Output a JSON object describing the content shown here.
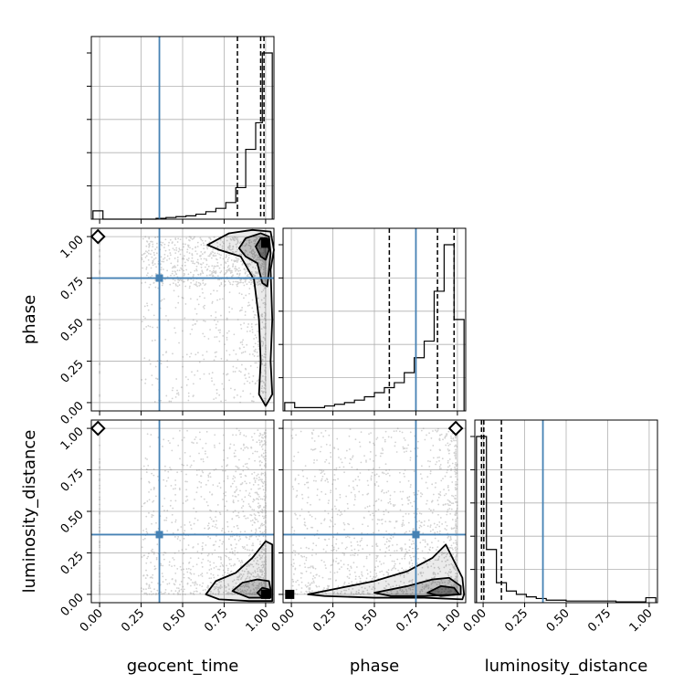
{
  "figure": {
    "type": "corner-plot",
    "parameters": [
      "geocent_time",
      "phase",
      "luminosity_distance"
    ],
    "tick_labels": [
      "0.00",
      "0.25",
      "0.50",
      "0.75",
      "1.00"
    ]
  },
  "colors": {
    "truth": "#4682b4",
    "grid": "#b0b0b0",
    "histogram": "#000000",
    "scatter": "#808080"
  },
  "chart_data": [
    {
      "type": "histogram",
      "panel": "geocent_time-1d",
      "xlabel": "",
      "xlim": [
        -0.05,
        1.05
      ],
      "bins": [
        {
          "x0": -0.04,
          "x1": 0.02,
          "v": 0.05
        },
        {
          "x0": 0.02,
          "x1": 0.34,
          "v": 0.0
        },
        {
          "x0": 0.34,
          "x1": 0.4,
          "v": 0.005
        },
        {
          "x0": 0.4,
          "x1": 0.46,
          "v": 0.01
        },
        {
          "x0": 0.46,
          "x1": 0.52,
          "v": 0.015
        },
        {
          "x0": 0.52,
          "x1": 0.58,
          "v": 0.02
        },
        {
          "x0": 0.58,
          "x1": 0.64,
          "v": 0.03
        },
        {
          "x0": 0.64,
          "x1": 0.7,
          "v": 0.045
        },
        {
          "x0": 0.7,
          "x1": 0.76,
          "v": 0.065
        },
        {
          "x0": 0.76,
          "x1": 0.82,
          "v": 0.1
        },
        {
          "x0": 0.82,
          "x1": 0.88,
          "v": 0.19
        },
        {
          "x0": 0.88,
          "x1": 0.94,
          "v": 0.42
        },
        {
          "x0": 0.94,
          "x1": 0.98,
          "v": 0.58
        },
        {
          "x0": 0.98,
          "x1": 1.04,
          "v": 1.0
        }
      ],
      "quantiles": [
        0.83,
        0.97,
        0.99
      ],
      "truth": 0.36
    },
    {
      "type": "histogram",
      "panel": "phase-1d",
      "xlabel": "",
      "xlim": [
        -0.05,
        1.05
      ],
      "bins": [
        {
          "x0": -0.04,
          "x1": 0.02,
          "v": 0.05
        },
        {
          "x0": 0.02,
          "x1": 0.2,
          "v": 0.02
        },
        {
          "x0": 0.2,
          "x1": 0.26,
          "v": 0.03
        },
        {
          "x0": 0.26,
          "x1": 0.32,
          "v": 0.04
        },
        {
          "x0": 0.32,
          "x1": 0.38,
          "v": 0.05
        },
        {
          "x0": 0.38,
          "x1": 0.44,
          "v": 0.065
        },
        {
          "x0": 0.44,
          "x1": 0.5,
          "v": 0.085
        },
        {
          "x0": 0.5,
          "x1": 0.56,
          "v": 0.11
        },
        {
          "x0": 0.56,
          "x1": 0.62,
          "v": 0.14
        },
        {
          "x0": 0.62,
          "x1": 0.68,
          "v": 0.17
        },
        {
          "x0": 0.68,
          "x1": 0.74,
          "v": 0.23
        },
        {
          "x0": 0.74,
          "x1": 0.8,
          "v": 0.32
        },
        {
          "x0": 0.8,
          "x1": 0.86,
          "v": 0.42
        },
        {
          "x0": 0.86,
          "x1": 0.92,
          "v": 0.72
        },
        {
          "x0": 0.92,
          "x1": 0.98,
          "v": 1.0
        },
        {
          "x0": 0.98,
          "x1": 1.04,
          "v": 0.55
        }
      ],
      "quantiles": [
        0.59,
        0.88,
        0.98
      ],
      "truth": 0.75
    },
    {
      "type": "histogram",
      "panel": "luminosity_distance-1d",
      "xlabel": "luminosity_distance",
      "xlim": [
        -0.05,
        1.05
      ],
      "bins": [
        {
          "x0": -0.04,
          "x1": 0.02,
          "v": 1.0
        },
        {
          "x0": 0.02,
          "x1": 0.08,
          "v": 0.32
        },
        {
          "x0": 0.08,
          "x1": 0.14,
          "v": 0.12
        },
        {
          "x0": 0.14,
          "x1": 0.2,
          "v": 0.07
        },
        {
          "x0": 0.2,
          "x1": 0.26,
          "v": 0.05
        },
        {
          "x0": 0.26,
          "x1": 0.32,
          "v": 0.035
        },
        {
          "x0": 0.32,
          "x1": 0.38,
          "v": 0.025
        },
        {
          "x0": 0.38,
          "x1": 0.5,
          "v": 0.015
        },
        {
          "x0": 0.5,
          "x1": 0.8,
          "v": 0.01
        },
        {
          "x0": 0.8,
          "x1": 0.98,
          "v": 0.005
        },
        {
          "x0": 0.98,
          "x1": 1.04,
          "v": 0.03
        }
      ],
      "quantiles": [
        -0.01,
        0.004,
        0.11
      ],
      "truth": 0.36
    },
    {
      "type": "scatter",
      "panel": "geocent_time-phase",
      "xlabel": "",
      "ylabel": "phase",
      "xlim": [
        -0.05,
        1.05
      ],
      "ylim": [
        -0.05,
        1.05
      ],
      "truth": [
        0.36,
        0.75
      ],
      "max_marker": [
        -0.01,
        1.0
      ],
      "median_marker": [
        1.0,
        0.96
      ],
      "contours": [
        [
          [
            0.65,
            0.95
          ],
          [
            0.78,
            1.02
          ],
          [
            0.92,
            1.04
          ],
          [
            1.03,
            1.03
          ],
          [
            1.05,
            0.92
          ],
          [
            1.03,
            0.8
          ],
          [
            1.04,
            0.5
          ],
          [
            1.03,
            0.25
          ],
          [
            1.04,
            0.05
          ],
          [
            1.0,
            -0.02
          ],
          [
            0.96,
            0.05
          ],
          [
            0.97,
            0.25
          ],
          [
            0.96,
            0.5
          ],
          [
            0.93,
            0.74
          ],
          [
            0.85,
            0.88
          ],
          [
            0.72,
            0.92
          ],
          [
            0.65,
            0.95
          ]
        ],
        [
          [
            0.84,
            0.93
          ],
          [
            0.88,
            0.99
          ],
          [
            0.97,
            1.02
          ],
          [
            1.02,
            1.0
          ],
          [
            1.03,
            0.9
          ],
          [
            1.02,
            0.8
          ],
          [
            1.01,
            0.7
          ],
          [
            0.98,
            0.72
          ],
          [
            0.95,
            0.84
          ],
          [
            0.88,
            0.88
          ],
          [
            0.84,
            0.93
          ]
        ],
        [
          [
            0.94,
            0.94
          ],
          [
            0.97,
            0.99
          ],
          [
            1.01,
            0.99
          ],
          [
            1.02,
            0.92
          ],
          [
            1.0,
            0.86
          ],
          [
            0.97,
            0.88
          ],
          [
            0.94,
            0.94
          ]
        ]
      ]
    },
    {
      "type": "scatter",
      "panel": "geocent_time-luminosity_distance",
      "xlabel": "geocent_time",
      "ylabel": "luminosity_distance",
      "xlim": [
        -0.05,
        1.05
      ],
      "ylim": [
        -0.05,
        1.05
      ],
      "truth": [
        0.36,
        0.36
      ],
      "max_marker": [
        -0.01,
        1.0
      ],
      "median_marker": [
        1.0,
        0.0
      ],
      "contours": [
        [
          [
            0.64,
            0.0
          ],
          [
            0.7,
            0.08
          ],
          [
            0.82,
            0.13
          ],
          [
            0.92,
            0.22
          ],
          [
            1.0,
            0.32
          ],
          [
            1.04,
            0.3
          ],
          [
            1.04,
            0.1
          ],
          [
            1.04,
            -0.04
          ],
          [
            0.9,
            -0.04
          ],
          [
            0.72,
            -0.03
          ],
          [
            0.64,
            0.0
          ]
        ],
        [
          [
            0.8,
            0.02
          ],
          [
            0.86,
            0.07
          ],
          [
            0.95,
            0.09
          ],
          [
            1.02,
            0.08
          ],
          [
            1.03,
            0.03
          ],
          [
            1.03,
            -0.02
          ],
          [
            0.9,
            -0.02
          ],
          [
            0.8,
            0.02
          ]
        ],
        [
          [
            0.95,
            0.01
          ],
          [
            0.98,
            0.04
          ],
          [
            1.02,
            0.03
          ],
          [
            1.02,
            -0.01
          ],
          [
            0.97,
            -0.01
          ],
          [
            0.95,
            0.01
          ]
        ]
      ]
    },
    {
      "type": "scatter",
      "panel": "phase-luminosity_distance",
      "xlabel": "phase",
      "ylabel": "",
      "xlim": [
        -0.05,
        1.05
      ],
      "ylim": [
        -0.05,
        1.05
      ],
      "truth": [
        0.75,
        0.36
      ],
      "max_marker": [
        0.99,
        1.0
      ],
      "median_marker": [
        -0.01,
        0.0
      ],
      "contours": [
        [
          [
            0.1,
            0.0
          ],
          [
            0.3,
            0.04
          ],
          [
            0.5,
            0.08
          ],
          [
            0.7,
            0.14
          ],
          [
            0.85,
            0.22
          ],
          [
            0.93,
            0.3
          ],
          [
            0.97,
            0.22
          ],
          [
            1.03,
            0.1
          ],
          [
            1.04,
            0.0
          ],
          [
            1.03,
            -0.03
          ],
          [
            0.8,
            -0.02
          ],
          [
            0.5,
            -0.02
          ],
          [
            0.2,
            -0.01
          ],
          [
            0.1,
            0.0
          ]
        ],
        [
          [
            0.5,
            0.01
          ],
          [
            0.7,
            0.05
          ],
          [
            0.85,
            0.09
          ],
          [
            0.95,
            0.1
          ],
          [
            1.02,
            0.05
          ],
          [
            1.02,
            0.0
          ],
          [
            0.8,
            -0.01
          ],
          [
            0.6,
            -0.01
          ],
          [
            0.5,
            0.01
          ]
        ],
        [
          [
            0.82,
            0.01
          ],
          [
            0.9,
            0.05
          ],
          [
            0.98,
            0.04
          ],
          [
            1.01,
            0.0
          ],
          [
            0.9,
            -0.01
          ],
          [
            0.82,
            0.01
          ]
        ]
      ]
    }
  ]
}
